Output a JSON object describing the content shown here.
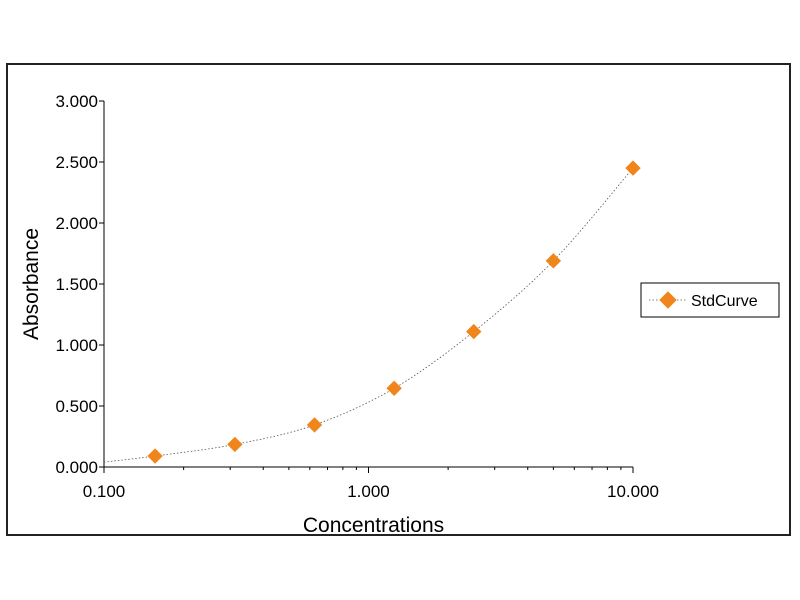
{
  "chart_data": {
    "type": "scatter",
    "x_scale": "log",
    "xlabel": "Concentrations",
    "ylabel": "Absorbance",
    "xlim": [
      0.1,
      10
    ],
    "ylim": [
      0,
      3
    ],
    "x_ticks": [
      0.1,
      1,
      10
    ],
    "x_tick_labels": [
      "0.100",
      "1.000",
      "10.000"
    ],
    "y_ticks": [
      0,
      0.5,
      1,
      1.5,
      2,
      2.5,
      3
    ],
    "y_tick_labels": [
      "0.000",
      "0.500",
      "1.000",
      "1.500",
      "2.000",
      "2.500",
      "3.000"
    ],
    "grid": false,
    "legend_position": "right",
    "series": [
      {
        "name": "StdCurve",
        "color": "#F0861B",
        "marker": "diamond",
        "line": "dotted",
        "x": [
          0.156,
          0.3125,
          0.625,
          1.25,
          2.5,
          5,
          10
        ],
        "y": [
          0.09,
          0.185,
          0.345,
          0.645,
          1.11,
          1.69,
          2.45
        ]
      }
    ],
    "fit_curve": {
      "x": [
        0.1,
        0.156,
        0.3125,
        0.625,
        1.25,
        2.5,
        5,
        10
      ],
      "y": [
        0.04,
        0.09,
        0.185,
        0.345,
        0.645,
        1.11,
        1.69,
        2.45
      ]
    }
  }
}
